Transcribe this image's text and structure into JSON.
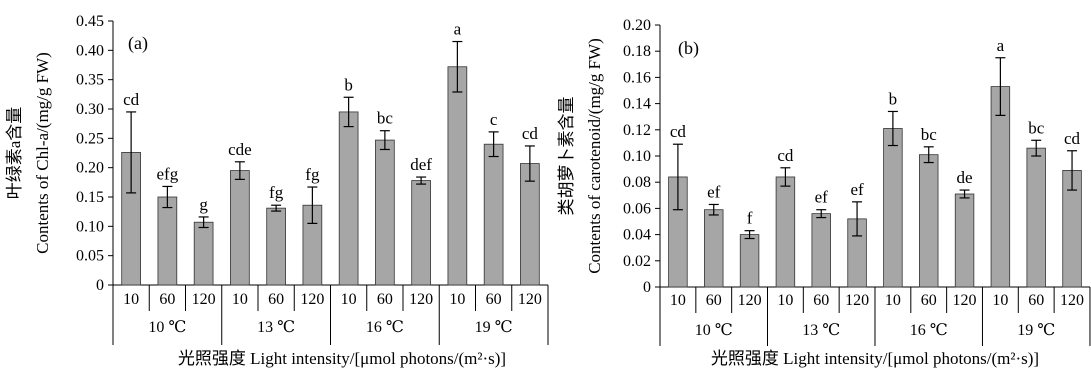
{
  "figure": {
    "x_title": "光照强度 Light intensity/[μmol photons/(m²·s)]"
  },
  "chart_data": [
    {
      "type": "bar",
      "panel_label": "(a)",
      "ylabel_cn": "叶绿素a含量",
      "ylabel_en": "Contents of Chl-a/(mg/g FW)",
      "ylim": [
        0,
        0.45
      ],
      "yticks": [
        "0",
        "0.05",
        "0.10",
        "0.15",
        "0.20",
        "0.25",
        "0.30",
        "0.35",
        "0.40",
        "0.45"
      ],
      "categories": [
        "10",
        "60",
        "120",
        "10",
        "60",
        "120",
        "10",
        "60",
        "120",
        "10",
        "60",
        "120"
      ],
      "groups": [
        "10 ℃",
        "13 ℃",
        "16 ℃",
        "19 ℃"
      ],
      "values": [
        0.226,
        0.15,
        0.107,
        0.195,
        0.131,
        0.136,
        0.295,
        0.247,
        0.178,
        0.372,
        0.24,
        0.207
      ],
      "errors": [
        0.069,
        0.018,
        0.009,
        0.015,
        0.005,
        0.031,
        0.025,
        0.016,
        0.006,
        0.043,
        0.021,
        0.03
      ],
      "sig_labels": [
        "cd",
        "efg",
        "g",
        "cde",
        "fg",
        "fg",
        "b",
        "bc",
        "def",
        "a",
        "c",
        "cd"
      ]
    },
    {
      "type": "bar",
      "panel_label": "(b)",
      "ylabel_cn": "类胡萝卜素含量",
      "ylabel_en": "Contents of carotenoid/(mg/g FW)",
      "ylim": [
        0,
        0.2
      ],
      "yticks": [
        "0",
        "0.02",
        "0.04",
        "0.06",
        "0.08",
        "0.10",
        "0.12",
        "0.14",
        "0.16",
        "0.18",
        "0.20"
      ],
      "categories": [
        "10",
        "60",
        "120",
        "10",
        "60",
        "120",
        "10",
        "60",
        "120",
        "10",
        "60",
        "120"
      ],
      "groups": [
        "10 ℃",
        "13 ℃",
        "16 ℃",
        "19 ℃"
      ],
      "values": [
        0.084,
        0.059,
        0.04,
        0.084,
        0.056,
        0.052,
        0.121,
        0.101,
        0.071,
        0.153,
        0.106,
        0.089
      ],
      "errors": [
        0.025,
        0.004,
        0.003,
        0.007,
        0.003,
        0.013,
        0.013,
        0.006,
        0.003,
        0.022,
        0.006,
        0.015
      ],
      "sig_labels": [
        "cd",
        "ef",
        "f",
        "cd",
        "ef",
        "ef",
        "b",
        "bc",
        "de",
        "a",
        "bc",
        "cd"
      ]
    }
  ]
}
